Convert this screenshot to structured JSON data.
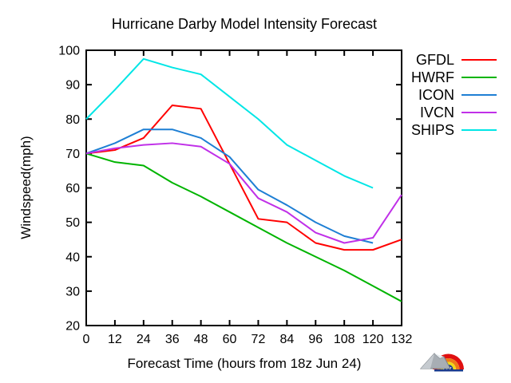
{
  "chart_data": {
    "type": "line",
    "title": "Hurricane Darby Model Intensity Forecast",
    "xlabel": "Forecast Time (hours from 18z Jun 24)",
    "ylabel": "Windspeed(mph)",
    "xlim": [
      0,
      132
    ],
    "ylim": [
      20,
      100
    ],
    "x_ticks": [
      0,
      12,
      24,
      36,
      48,
      60,
      72,
      84,
      96,
      108,
      120,
      132
    ],
    "y_ticks": [
      20,
      30,
      40,
      50,
      60,
      70,
      80,
      90,
      100
    ],
    "grid": false,
    "legend_position": "right-outside",
    "x": [
      0,
      12,
      24,
      36,
      48,
      60,
      72,
      84,
      96,
      108,
      120,
      132
    ],
    "series": [
      {
        "name": "GFDL",
        "color": "#ff0000",
        "values": [
          70,
          71,
          74.5,
          84,
          83,
          67,
          51,
          50,
          44,
          42,
          42,
          45
        ]
      },
      {
        "name": "HWRF",
        "color": "#00b400",
        "values": [
          70,
          67.5,
          66.5,
          61.5,
          57.5,
          53,
          48.5,
          44,
          40,
          36,
          31.5,
          27
        ]
      },
      {
        "name": "ICON",
        "color": "#1e7fd4",
        "values": [
          70,
          73,
          77,
          77,
          74.5,
          69,
          59.5,
          55,
          50,
          46,
          44,
          null
        ]
      },
      {
        "name": "IVCN",
        "color": "#c030e8",
        "values": [
          70,
          71.5,
          72.5,
          73,
          72,
          67,
          57,
          53,
          47,
          44,
          45.5,
          58
        ]
      },
      {
        "name": "SHIPS",
        "color": "#00e6e6",
        "values": [
          80,
          88.5,
          97.5,
          95,
          93,
          86.5,
          80,
          72.5,
          68,
          63.5,
          60,
          null
        ]
      }
    ]
  },
  "colors": {
    "axis": "#000000",
    "background": "#ffffff",
    "logo_rainbow": [
      "#e01010",
      "#f07818",
      "#f0d818"
    ],
    "logo_cloud_fill": "#1a3a8c",
    "logo_mountain": "#a8aeb4"
  }
}
